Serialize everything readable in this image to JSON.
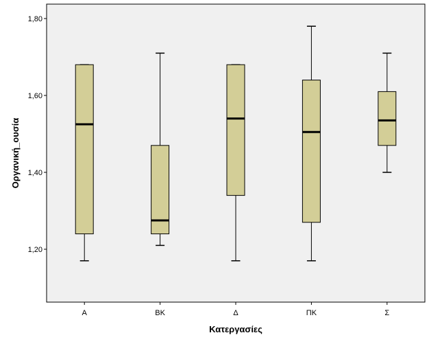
{
  "chart_data": {
    "type": "boxplot",
    "xlabel": "Κατεργασίες",
    "ylabel": "Οργανική_ουσία",
    "ylim": [
      1.05,
      1.84
    ],
    "yticks": [
      1.2,
      1.4,
      1.6,
      1.8
    ],
    "ytick_labels": [
      "1,20",
      "1,40",
      "1,60",
      "1,80"
    ],
    "grid": false,
    "categories": [
      "Α",
      "ΒΚ",
      "Δ",
      "ΠΚ",
      "Σ"
    ],
    "boxes": [
      {
        "category": "Α",
        "whisker_low": 1.17,
        "q1": 1.24,
        "median": 1.525,
        "q3": 1.68,
        "whisker_high": 1.68
      },
      {
        "category": "ΒΚ",
        "whisker_low": 1.21,
        "q1": 1.24,
        "median": 1.275,
        "q3": 1.47,
        "whisker_high": 1.71
      },
      {
        "category": "Δ",
        "whisker_low": 1.17,
        "q1": 1.34,
        "median": 1.54,
        "q3": 1.68,
        "whisker_high": 1.68
      },
      {
        "category": "ΠΚ",
        "whisker_low": 1.17,
        "q1": 1.27,
        "median": 1.505,
        "q3": 1.64,
        "whisker_high": 1.78
      },
      {
        "category": "Σ",
        "whisker_low": 1.4,
        "q1": 1.47,
        "median": 1.535,
        "q3": 1.61,
        "whisker_high": 1.71
      }
    ],
    "colors": {
      "plot_background": "#f0f0f0",
      "box_fill": "#d3ce97",
      "stroke": "#000000",
      "frame": "#b3b3b3"
    }
  }
}
